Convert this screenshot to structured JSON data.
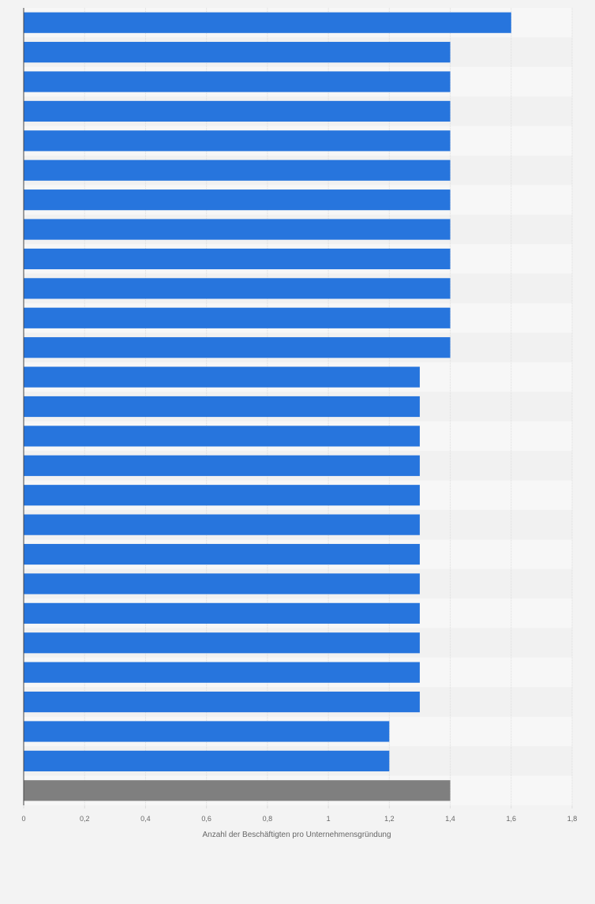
{
  "chart_data": {
    "type": "bar",
    "orientation": "horizontal",
    "title": "",
    "xlabel": "Anzahl der Beschäftigten pro Unternehmensgründung",
    "ylabel": "",
    "xlim": [
      0,
      1.8
    ],
    "x_ticks": [
      "0",
      "0,2",
      "0,4",
      "0,6",
      "0,8",
      "1",
      "1,2",
      "1,4",
      "1,6",
      "1,8"
    ],
    "grid": true,
    "legend": "none",
    "categories": [
      "",
      "",
      "",
      "",
      "",
      "",
      "",
      "",
      "",
      "",
      "",
      "",
      "",
      "",
      "",
      "",
      "",
      "",
      "",
      "",
      "",
      "",
      "",
      "",
      "",
      "",
      ""
    ],
    "values": [
      1.6,
      1.4,
      1.4,
      1.4,
      1.4,
      1.4,
      1.4,
      1.4,
      1.4,
      1.4,
      1.4,
      1.4,
      1.3,
      1.3,
      1.3,
      1.3,
      1.3,
      1.3,
      1.3,
      1.3,
      1.3,
      1.3,
      1.3,
      1.3,
      1.2,
      1.2,
      1.4
    ],
    "highlight_index": 26,
    "colors": {
      "bar": "#2775dd",
      "highlight_bar": "#7f7f7f",
      "band_light": "#f7f7f7",
      "band_dark": "#f1f1f1",
      "grid": "#dcdcdc",
      "axis": "#444444",
      "tick_text": "#666666"
    }
  }
}
